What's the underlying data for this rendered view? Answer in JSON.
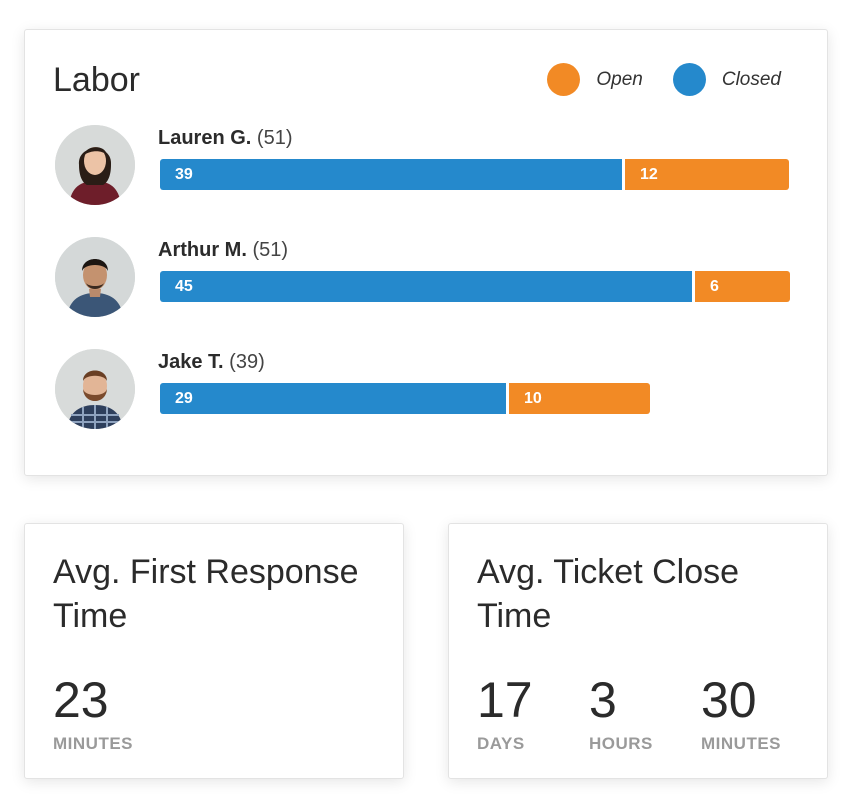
{
  "labor": {
    "title": "Labor",
    "legend": [
      {
        "label": "Open",
        "color": "#f28a25"
      },
      {
        "label": "Closed",
        "color": "#2589cc"
      }
    ],
    "people": [
      {
        "name": "Lauren G.",
        "total": "(51)",
        "closed": 39,
        "open": 12,
        "avatar": "female-headshot"
      },
      {
        "name": "Arthur M.",
        "total": "(51)",
        "closed": 45,
        "open": 6,
        "avatar": "male-headshot-denim"
      },
      {
        "name": "Jake T.",
        "total": "(39)",
        "closed": 29,
        "open": 10,
        "avatar": "male-headshot-plaid"
      }
    ]
  },
  "first_response": {
    "title": "Avg. First Response Time",
    "values": [
      {
        "number": "23",
        "unit": "MINUTES"
      }
    ]
  },
  "ticket_close": {
    "title": "Avg. Ticket Close Time",
    "values": [
      {
        "number": "17",
        "unit": "DAYS"
      },
      {
        "number": "3",
        "unit": "HOURS"
      },
      {
        "number": "30",
        "unit": "MINUTES"
      }
    ]
  },
  "colors": {
    "closed": "#2589cc",
    "open": "#f28a25"
  }
}
